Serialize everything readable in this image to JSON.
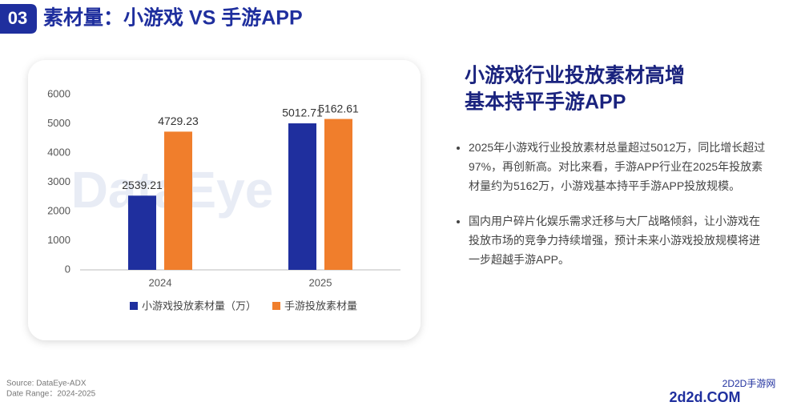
{
  "header": {
    "number": "03",
    "title": "素材量：小游戏 VS 手游APP"
  },
  "chart_data": {
    "type": "bar",
    "categories": [
      "2024",
      "2025"
    ],
    "series": [
      {
        "name": "小游戏投放素材量（万）",
        "color": "#1f2f9e",
        "values": [
          2539.21,
          5012.71
        ]
      },
      {
        "name": "手游投放素材量",
        "color": "#f07e2c",
        "values": [
          4729.23,
          5162.61
        ]
      }
    ],
    "ylim": [
      0,
      6000
    ],
    "yticks": [
      0,
      1000,
      2000,
      3000,
      4000,
      5000,
      6000
    ],
    "grid": false,
    "legend": "bottom",
    "watermark": "DataEye"
  },
  "panel": {
    "heading": [
      "小游戏行业投放素材高增",
      "基本持平手游APP"
    ],
    "bullets": [
      "2025年小游戏行业投放素材总量超过5012万，同比增长超过97%，再创新高。对比来看，手游APP行业在2025年投放素材量约为5162万，小游戏基本持平手游APP投放规模。",
      "国内用户碎片化娱乐需求迁移与大厂战略倾斜，让小游戏在投放市场的竞争力持续增强，预计未来小游戏投放规模将进一步超越手游APP。"
    ]
  },
  "footer": {
    "source": "Source: DataEye-ADX",
    "date_range": "Date Range：2024-2025"
  },
  "site_mark": {
    "name": "2D2D手游网",
    "domain": "2d2d.COM"
  }
}
